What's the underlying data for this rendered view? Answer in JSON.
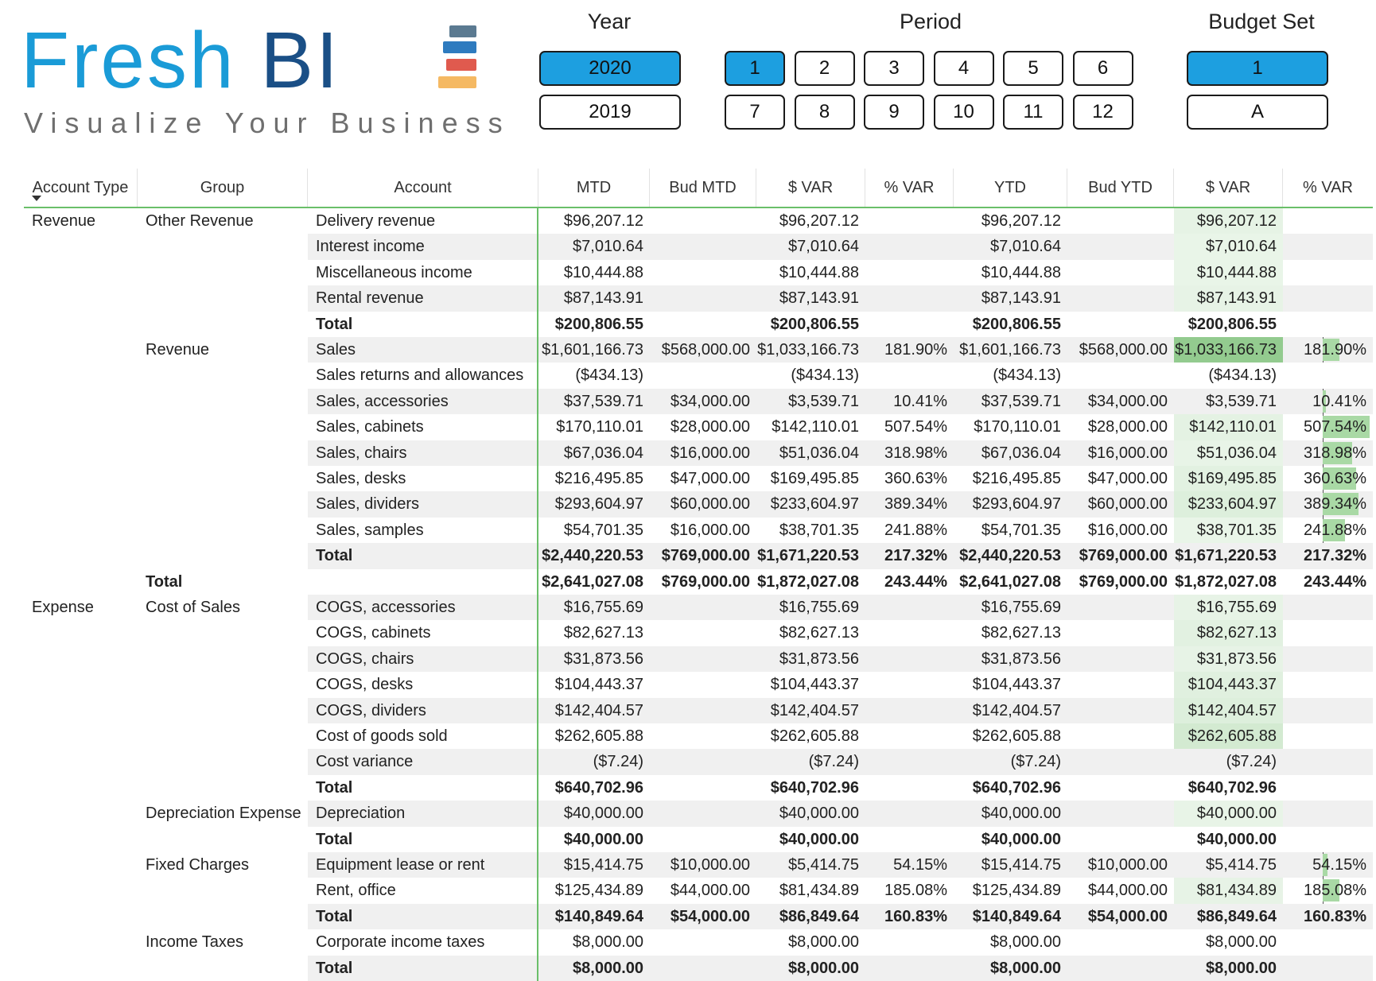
{
  "logo": {
    "word_primary": "Fresh",
    "word_secondary": "BI",
    "tagline": "Visualize Your Business",
    "bar_colors": [
      "#5b7a91",
      "#2e7bbf",
      "#e05a4e",
      "#f5b963"
    ]
  },
  "colors": {
    "selected": "#1d9fe0",
    "accent_line": "#6abf69",
    "databar": "#a9d9a5",
    "stripe": "#f0f0f0"
  },
  "slicers": {
    "year": {
      "title": "Year",
      "options": [
        {
          "label": "2020",
          "selected": true
        },
        {
          "label": "2019",
          "selected": false
        }
      ]
    },
    "period": {
      "title": "Period",
      "options": [
        {
          "label": "1",
          "selected": true
        },
        {
          "label": "2",
          "selected": false
        },
        {
          "label": "3",
          "selected": false
        },
        {
          "label": "4",
          "selected": false
        },
        {
          "label": "5",
          "selected": false
        },
        {
          "label": "6",
          "selected": false
        },
        {
          "label": "7",
          "selected": false
        },
        {
          "label": "8",
          "selected": false
        },
        {
          "label": "9",
          "selected": false
        },
        {
          "label": "10",
          "selected": false
        },
        {
          "label": "11",
          "selected": false
        },
        {
          "label": "12",
          "selected": false
        }
      ]
    },
    "budget_set": {
      "title": "Budget Set",
      "options": [
        {
          "label": "1",
          "selected": true
        },
        {
          "label": "A",
          "selected": false
        }
      ]
    }
  },
  "matrix": {
    "columns": [
      "Account Type",
      "Group",
      "Account",
      "MTD",
      "Bud MTD",
      "$ VAR",
      "% VAR",
      "YTD",
      "Bud YTD",
      "$ VAR",
      "% VAR"
    ],
    "sort_icon": "sort-descending-icon",
    "rows": [
      {
        "type": "Revenue",
        "group": "Other Revenue",
        "account": "Delivery revenue",
        "mtd": "$96,207.12",
        "bud_mtd": "",
        "var_mtd": "$96,207.12",
        "pct_mtd": "",
        "ytd": "$96,207.12",
        "bud_ytd": "",
        "var_ytd": "$96,207.12",
        "pct_ytd": "",
        "pct_value": null,
        "var_highlight": 0.06
      },
      {
        "type": "",
        "group": "",
        "account": "Interest income",
        "mtd": "$7,010.64",
        "bud_mtd": "",
        "var_mtd": "$7,010.64",
        "pct_mtd": "",
        "ytd": "$7,010.64",
        "bud_ytd": "",
        "var_ytd": "$7,010.64",
        "pct_ytd": "",
        "pct_value": null,
        "var_highlight": 0.02
      },
      {
        "type": "",
        "group": "",
        "account": "Miscellaneous income",
        "mtd": "$10,444.88",
        "bud_mtd": "",
        "var_mtd": "$10,444.88",
        "pct_mtd": "",
        "ytd": "$10,444.88",
        "bud_ytd": "",
        "var_ytd": "$10,444.88",
        "pct_ytd": "",
        "pct_value": null,
        "var_highlight": 0.02
      },
      {
        "type": "",
        "group": "",
        "account": "Rental revenue",
        "mtd": "$87,143.91",
        "bud_mtd": "",
        "var_mtd": "$87,143.91",
        "pct_mtd": "",
        "ytd": "$87,143.91",
        "bud_ytd": "",
        "var_ytd": "$87,143.91",
        "pct_ytd": "",
        "pct_value": null,
        "var_highlight": 0.05
      },
      {
        "type": "",
        "group": "",
        "account": "Total",
        "bold_account": true,
        "mtd": "$200,806.55",
        "bud_mtd": "",
        "var_mtd": "$200,806.55",
        "pct_mtd": "",
        "ytd": "$200,806.55",
        "bud_ytd": "",
        "var_ytd": "$200,806.55",
        "pct_ytd": "",
        "pct_value": null,
        "var_highlight": 0
      },
      {
        "type": "",
        "group": "Revenue",
        "account": "Sales",
        "mtd": "$1,601,166.73",
        "bud_mtd": "$568,000.00",
        "var_mtd": "$1,033,166.73",
        "pct_mtd": "181.90%",
        "ytd": "$1,601,166.73",
        "bud_ytd": "$568,000.00",
        "var_ytd": "$1,033,166.73",
        "pct_ytd": "181.90%",
        "pct_value": 181.9,
        "var_highlight": 1
      },
      {
        "type": "",
        "group": "",
        "account": "Sales returns and allowances",
        "mtd": "($434.13)",
        "bud_mtd": "",
        "var_mtd": "($434.13)",
        "pct_mtd": "",
        "ytd": "($434.13)",
        "bud_ytd": "",
        "var_ytd": "($434.13)",
        "pct_ytd": "",
        "pct_value": null,
        "var_highlight": 0
      },
      {
        "type": "",
        "group": "",
        "account": "Sales, accessories",
        "mtd": "$37,539.71",
        "bud_mtd": "$34,000.00",
        "var_mtd": "$3,539.71",
        "pct_mtd": "10.41%",
        "ytd": "$37,539.71",
        "bud_ytd": "$34,000.00",
        "var_ytd": "$3,539.71",
        "pct_ytd": "10.41%",
        "pct_value": 10.41,
        "var_highlight": 0
      },
      {
        "type": "",
        "group": "",
        "account": "Sales, cabinets",
        "mtd": "$170,110.01",
        "bud_mtd": "$28,000.00",
        "var_mtd": "$142,110.01",
        "pct_mtd": "507.54%",
        "ytd": "$170,110.01",
        "bud_ytd": "$28,000.00",
        "var_ytd": "$142,110.01",
        "pct_ytd": "507.54%",
        "pct_value": 507.54,
        "var_highlight": 0.08
      },
      {
        "type": "",
        "group": "",
        "account": "Sales, chairs",
        "mtd": "$67,036.04",
        "bud_mtd": "$16,000.00",
        "var_mtd": "$51,036.04",
        "pct_mtd": "318.98%",
        "ytd": "$67,036.04",
        "bud_ytd": "$16,000.00",
        "var_ytd": "$51,036.04",
        "pct_ytd": "318.98%",
        "pct_value": 318.98,
        "var_highlight": 0.03
      },
      {
        "type": "",
        "group": "",
        "account": "Sales, desks",
        "mtd": "$216,495.85",
        "bud_mtd": "$47,000.00",
        "var_mtd": "$169,495.85",
        "pct_mtd": "360.63%",
        "ytd": "$216,495.85",
        "bud_ytd": "$47,000.00",
        "var_ytd": "$169,495.85",
        "pct_ytd": "360.63%",
        "pct_value": 360.63,
        "var_highlight": 0.1
      },
      {
        "type": "",
        "group": "",
        "account": "Sales, dividers",
        "mtd": "$293,604.97",
        "bud_mtd": "$60,000.00",
        "var_mtd": "$233,604.97",
        "pct_mtd": "389.34%",
        "ytd": "$293,604.97",
        "bud_ytd": "$60,000.00",
        "var_ytd": "$233,604.97",
        "pct_ytd": "389.34%",
        "pct_value": 389.34,
        "var_highlight": 0.15
      },
      {
        "type": "",
        "group": "",
        "account": "Sales, samples",
        "mtd": "$54,701.35",
        "bud_mtd": "$16,000.00",
        "var_mtd": "$38,701.35",
        "pct_mtd": "241.88%",
        "ytd": "$54,701.35",
        "bud_ytd": "$16,000.00",
        "var_ytd": "$38,701.35",
        "pct_ytd": "241.88%",
        "pct_value": 241.88,
        "var_highlight": 0.02
      },
      {
        "type": "",
        "group": "",
        "account": "Total",
        "bold_account": true,
        "mtd": "$2,440,220.53",
        "bud_mtd": "$769,000.00",
        "var_mtd": "$1,671,220.53",
        "pct_mtd": "217.32%",
        "ytd": "$2,440,220.53",
        "bud_ytd": "$769,000.00",
        "var_ytd": "$1,671,220.53",
        "pct_ytd": "217.32%",
        "pct_value": null,
        "var_highlight": 0
      },
      {
        "type": "",
        "group": "Total",
        "bold_group": true,
        "bold_row": true,
        "account": "",
        "mtd": "$2,641,027.08",
        "bud_mtd": "$769,000.00",
        "var_mtd": "$1,872,027.08",
        "pct_mtd": "243.44%",
        "ytd": "$2,641,027.08",
        "bud_ytd": "$769,000.00",
        "var_ytd": "$1,872,027.08",
        "pct_ytd": "243.44%",
        "pct_value": null,
        "var_highlight": 0
      },
      {
        "type": "Expense",
        "group": "Cost of Sales",
        "account": "COGS, accessories",
        "mtd": "$16,755.69",
        "bud_mtd": "",
        "var_mtd": "$16,755.69",
        "pct_mtd": "",
        "ytd": "$16,755.69",
        "bud_ytd": "",
        "var_ytd": "$16,755.69",
        "pct_ytd": "",
        "pct_value": null,
        "var_highlight": 0.04
      },
      {
        "type": "",
        "group": "",
        "account": "COGS, cabinets",
        "mtd": "$82,627.13",
        "bud_mtd": "",
        "var_mtd": "$82,627.13",
        "pct_mtd": "",
        "ytd": "$82,627.13",
        "bud_ytd": "",
        "var_ytd": "$82,627.13",
        "pct_ytd": "",
        "pct_value": null,
        "var_highlight": 0.1
      },
      {
        "type": "",
        "group": "",
        "account": "COGS, chairs",
        "mtd": "$31,873.56",
        "bud_mtd": "",
        "var_mtd": "$31,873.56",
        "pct_mtd": "",
        "ytd": "$31,873.56",
        "bud_ytd": "",
        "var_ytd": "$31,873.56",
        "pct_ytd": "",
        "pct_value": null,
        "var_highlight": 0.05
      },
      {
        "type": "",
        "group": "",
        "account": "COGS, desks",
        "mtd": "$104,443.37",
        "bud_mtd": "",
        "var_mtd": "$104,443.37",
        "pct_mtd": "",
        "ytd": "$104,443.37",
        "bud_ytd": "",
        "var_ytd": "$104,443.37",
        "pct_ytd": "",
        "pct_value": null,
        "var_highlight": 0.12
      },
      {
        "type": "",
        "group": "",
        "account": "COGS, dividers",
        "mtd": "$142,404.57",
        "bud_mtd": "",
        "var_mtd": "$142,404.57",
        "pct_mtd": "",
        "ytd": "$142,404.57",
        "bud_ytd": "",
        "var_ytd": "$142,404.57",
        "pct_ytd": "",
        "pct_value": null,
        "var_highlight": 0.15
      },
      {
        "type": "",
        "group": "",
        "account": "Cost of goods sold",
        "mtd": "$262,605.88",
        "bud_mtd": "",
        "var_mtd": "$262,605.88",
        "pct_mtd": "",
        "ytd": "$262,605.88",
        "bud_ytd": "",
        "var_ytd": "$262,605.88",
        "pct_ytd": "",
        "pct_value": null,
        "var_highlight": 0.28
      },
      {
        "type": "",
        "group": "",
        "account": "Cost variance",
        "mtd": "($7.24)",
        "bud_mtd": "",
        "var_mtd": "($7.24)",
        "pct_mtd": "",
        "ytd": "($7.24)",
        "bud_ytd": "",
        "var_ytd": "($7.24)",
        "pct_ytd": "",
        "pct_value": null,
        "var_highlight": 0
      },
      {
        "type": "",
        "group": "",
        "account": "Total",
        "bold_account": true,
        "mtd": "$640,702.96",
        "bud_mtd": "",
        "var_mtd": "$640,702.96",
        "pct_mtd": "",
        "ytd": "$640,702.96",
        "bud_ytd": "",
        "var_ytd": "$640,702.96",
        "pct_ytd": "",
        "pct_value": null,
        "var_highlight": 0
      },
      {
        "type": "",
        "group": "Depreciation Expense",
        "account": "Depreciation",
        "mtd": "$40,000.00",
        "bud_mtd": "",
        "var_mtd": "$40,000.00",
        "pct_mtd": "",
        "ytd": "$40,000.00",
        "bud_ytd": "",
        "var_ytd": "$40,000.00",
        "pct_ytd": "",
        "pct_value": null,
        "var_highlight": 0.03
      },
      {
        "type": "",
        "group": "",
        "account": "Total",
        "bold_account": true,
        "mtd": "$40,000.00",
        "bud_mtd": "",
        "var_mtd": "$40,000.00",
        "pct_mtd": "",
        "ytd": "$40,000.00",
        "bud_ytd": "",
        "var_ytd": "$40,000.00",
        "pct_ytd": "",
        "pct_value": null,
        "var_highlight": 0
      },
      {
        "type": "",
        "group": "Fixed Charges",
        "account": "Equipment lease or rent",
        "mtd": "$15,414.75",
        "bud_mtd": "$10,000.00",
        "var_mtd": "$5,414.75",
        "pct_mtd": "54.15%",
        "ytd": "$15,414.75",
        "bud_ytd": "$10,000.00",
        "var_ytd": "$5,414.75",
        "pct_ytd": "54.15%",
        "pct_value": 54.15,
        "var_highlight": 0
      },
      {
        "type": "",
        "group": "",
        "account": "Rent, office",
        "mtd": "$125,434.89",
        "bud_mtd": "$44,000.00",
        "var_mtd": "$81,434.89",
        "pct_mtd": "185.08%",
        "ytd": "$125,434.89",
        "bud_ytd": "$44,000.00",
        "var_ytd": "$81,434.89",
        "pct_ytd": "185.08%",
        "pct_value": 185.08,
        "var_highlight": 0.04
      },
      {
        "type": "",
        "group": "",
        "account": "Total",
        "bold_account": true,
        "mtd": "$140,849.64",
        "bud_mtd": "$54,000.00",
        "var_mtd": "$86,849.64",
        "pct_mtd": "160.83%",
        "ytd": "$140,849.64",
        "bud_ytd": "$54,000.00",
        "var_ytd": "$86,849.64",
        "pct_ytd": "160.83%",
        "pct_value": null,
        "var_highlight": 0
      },
      {
        "type": "",
        "group": "Income Taxes",
        "account": "Corporate income taxes",
        "mtd": "$8,000.00",
        "bud_mtd": "",
        "var_mtd": "$8,000.00",
        "pct_mtd": "",
        "ytd": "$8,000.00",
        "bud_ytd": "",
        "var_ytd": "$8,000.00",
        "pct_ytd": "",
        "pct_value": null,
        "var_highlight": 0
      },
      {
        "type": "",
        "group": "",
        "account": "Total",
        "bold_account": true,
        "mtd": "$8,000.00",
        "bud_mtd": "",
        "var_mtd": "$8,000.00",
        "pct_mtd": "",
        "ytd": "$8,000.00",
        "bud_ytd": "",
        "var_ytd": "$8,000.00",
        "pct_ytd": "",
        "pct_value": null,
        "var_highlight": 0
      }
    ]
  }
}
